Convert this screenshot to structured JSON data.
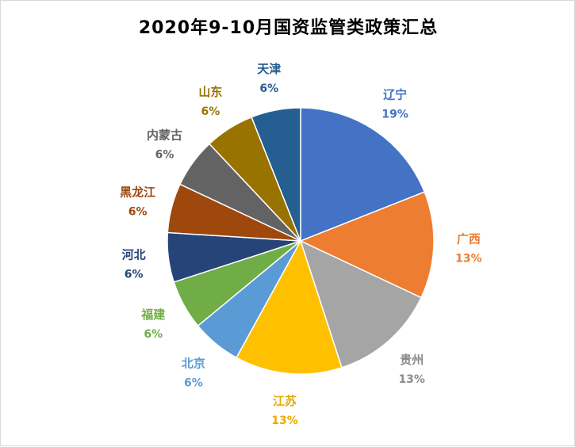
{
  "chart_data": {
    "type": "pie",
    "title": "2020年9-10月国资监管类政策汇总",
    "slices": [
      {
        "name": "辽宁",
        "value": 19,
        "label": "19%",
        "color": "#4472C4"
      },
      {
        "name": "广西",
        "value": 13,
        "label": "13%",
        "color": "#ED7D31"
      },
      {
        "name": "贵州",
        "value": 13,
        "label": "13%",
        "color": "#A5A5A5"
      },
      {
        "name": "江苏",
        "value": 13,
        "label": "13%",
        "color": "#FFC000"
      },
      {
        "name": "北京",
        "value": 6,
        "label": "6%",
        "color": "#5B9BD5"
      },
      {
        "name": "福建",
        "value": 6,
        "label": "6%",
        "color": "#70AD47"
      },
      {
        "name": "河北",
        "value": 6,
        "label": "6%",
        "color": "#264478"
      },
      {
        "name": "黑龙江",
        "value": 6,
        "label": "6%",
        "color": "#9E480E"
      },
      {
        "name": "内蒙古",
        "value": 6,
        "label": "6%",
        "color": "#636363"
      },
      {
        "name": "山东",
        "value": 6,
        "label": "6%",
        "color": "#997300"
      },
      {
        "name": "天津",
        "value": 6,
        "label": "6%",
        "color": "#255E91"
      }
    ]
  }
}
